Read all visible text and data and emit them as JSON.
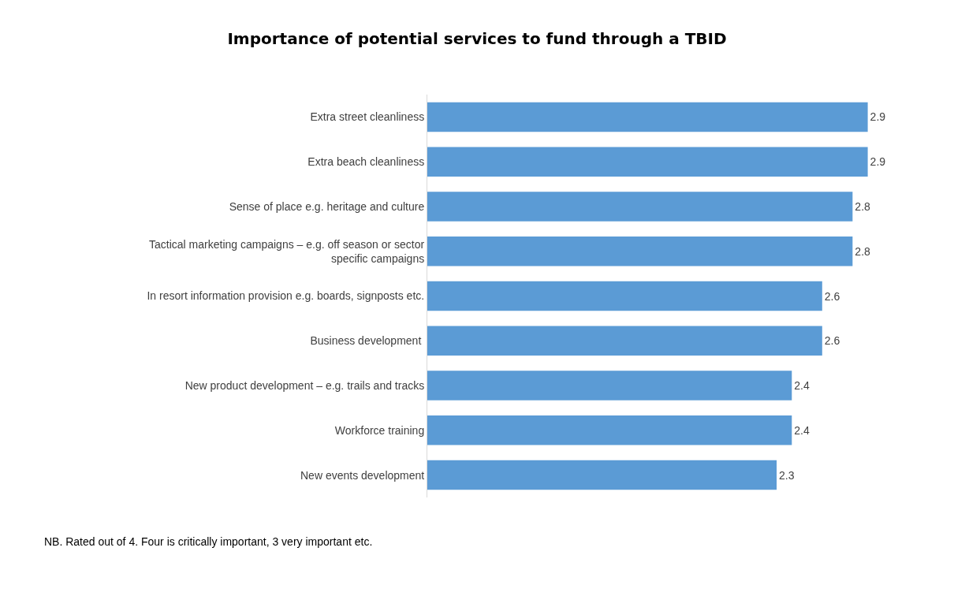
{
  "chart_data": {
    "type": "bar",
    "orientation": "horizontal",
    "title": "Importance of potential services to fund through a TBID",
    "categories": [
      "Extra street cleanliness",
      "Extra beach cleanliness",
      "Sense of place e.g. heritage and culture",
      "Tactical marketing campaigns – e.g. off season or sector specific campaigns",
      "In resort information provision e.g. boards, signposts etc.",
      "Business development ",
      "New product development – e.g. trails and tracks",
      "Workforce training",
      "New events development"
    ],
    "values": [
      2.9,
      2.9,
      2.8,
      2.8,
      2.6,
      2.6,
      2.4,
      2.4,
      2.3
    ],
    "color": "#5b9bd5",
    "data_labels": true,
    "tick_labels": "y",
    "annotations": [
      "NB. Rated out of 4. Four is critically important, 3 very important etc."
    ]
  }
}
